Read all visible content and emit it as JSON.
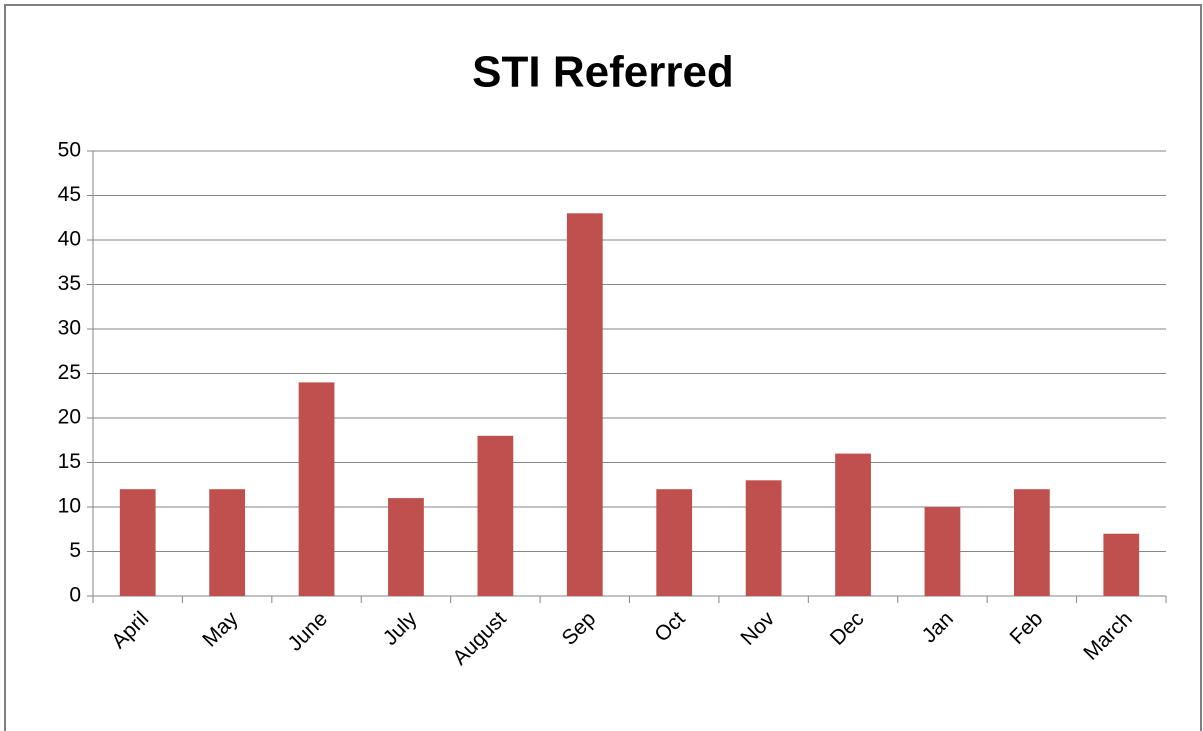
{
  "chart_data": {
    "type": "bar",
    "title": "STI Referred",
    "categories": [
      "April",
      "May",
      "June",
      "July",
      "August",
      "Sep",
      "Oct",
      "Nov",
      "Dec",
      "Jan",
      "Feb",
      "March"
    ],
    "values": [
      12,
      12,
      24,
      11,
      18,
      43,
      12,
      13,
      16,
      10,
      12,
      7
    ],
    "color": "#c0504d",
    "ylim": [
      0,
      50
    ],
    "yticks": [
      0,
      5,
      10,
      15,
      20,
      25,
      30,
      35,
      40,
      45,
      50
    ],
    "grid": true
  }
}
